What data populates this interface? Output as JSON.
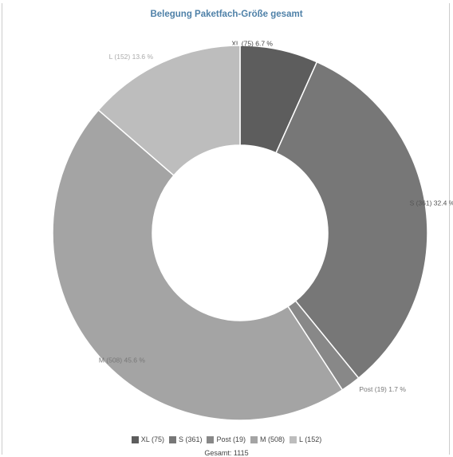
{
  "chart_data": {
    "type": "pie",
    "variant": "donut",
    "title": "Belegung Paketfach-Größe gesamt",
    "total_label": "Gesamt: 1115",
    "slices": [
      {
        "name": "XL",
        "value": 75,
        "label": "XL (75) 6.7 %",
        "legend": "XL (75)",
        "color": "#5d5d5d",
        "label_color": "#444444"
      },
      {
        "name": "S",
        "value": 361,
        "label": "S (361) 32.4 %",
        "legend": "S (361)",
        "color": "#777777",
        "label_color": "#555555"
      },
      {
        "name": "Post",
        "value": 19,
        "label": "Post (19) 1.7 %",
        "legend": "Post (19)",
        "color": "#888888",
        "label_color": "#777777"
      },
      {
        "name": "M",
        "value": 508,
        "label": "M (508) 45.6 %",
        "legend": "M (508)",
        "color": "#a4a4a4",
        "label_color": "#777777"
      },
      {
        "name": "L",
        "value": 152,
        "label": "L (152) 13.6 %",
        "legend": "L (152)",
        "color": "#bdbdbd",
        "label_color": "#aaaaaa"
      }
    ],
    "start_angle_deg": 270,
    "legend_position": "bottom"
  }
}
